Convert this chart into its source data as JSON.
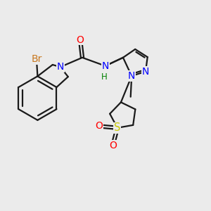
{
  "background_color": "#ebebeb",
  "bond_color": "#1a1a1a",
  "bond_width": 1.6,
  "figsize": [
    3.0,
    3.0
  ],
  "dpi": 100,
  "colors": {
    "Br": "#c87820",
    "N": "#0000ff",
    "O": "#ff0000",
    "S": "#c8c800",
    "H": "#008000",
    "C": "#1a1a1a"
  }
}
